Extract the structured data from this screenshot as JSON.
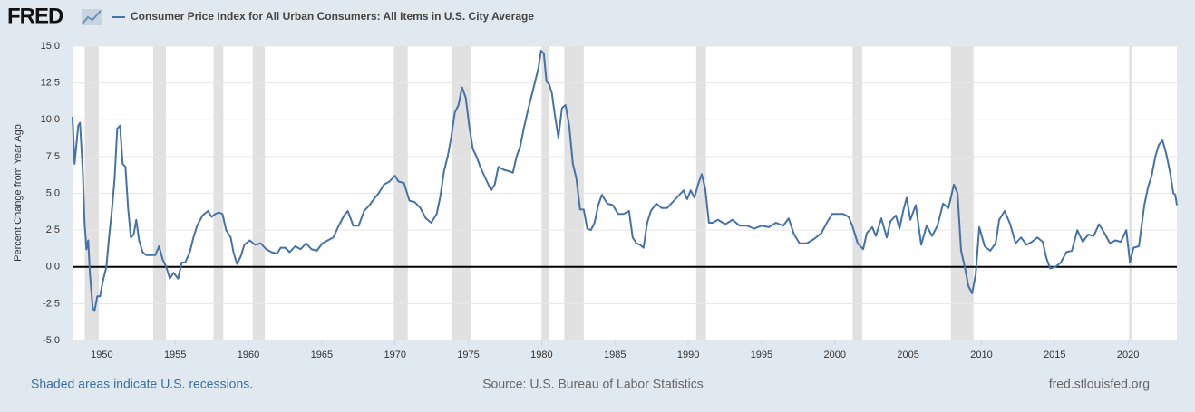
{
  "chart_data": {
    "type": "line",
    "logo": "FRED",
    "ylabel": "Percent Change from Year Ago",
    "footer_left": "Shaded areas indicate U.S. recessions.",
    "source": "Source: U.S. Bureau of Labor Statistics",
    "footer_right": "fred.stlouisfed.org",
    "xlim": [
      1948,
      2023.33
    ],
    "ylim": [
      -5,
      15
    ],
    "xticks": [
      1950,
      1955,
      1960,
      1965,
      1970,
      1975,
      1980,
      1985,
      1990,
      1995,
      2000,
      2005,
      2010,
      2015,
      2020
    ],
    "yticks": [
      {
        "value": -5,
        "label": "-5.0"
      },
      -2.5,
      {
        "value": 0,
        "label": "0.0"
      },
      2.5,
      {
        "value": 5,
        "label": "5.0"
      },
      7.5,
      {
        "value": 10,
        "label": "10.0"
      },
      12.5,
      {
        "value": 15,
        "label": "15.0"
      }
    ],
    "grid": true,
    "recession_color": "#e1e1e1",
    "recessions": [
      [
        1948.83,
        1949.79
      ],
      [
        1953.5,
        1954.37
      ],
      [
        1957.62,
        1958.29
      ],
      [
        1960.29,
        1961.12
      ],
      [
        1969.92,
        1970.87
      ],
      [
        1973.87,
        1975.21
      ],
      [
        1980.0,
        1980.54
      ],
      [
        1981.54,
        1982.87
      ],
      [
        1990.54,
        1991.21
      ],
      [
        2001.21,
        2001.87
      ],
      [
        2007.92,
        2009.46
      ],
      [
        2020.08,
        2020.29
      ]
    ],
    "x": [
      1948.0,
      1948.14,
      1948.39,
      1948.51,
      1948.7,
      1948.82,
      1948.95,
      1949.07,
      1949.19,
      1949.38,
      1949.5,
      1949.69,
      1949.88,
      1950.06,
      1950.31,
      1950.49,
      1950.68,
      1950.87,
      1951.05,
      1951.24,
      1951.42,
      1951.61,
      1951.79,
      1951.98,
      1952.17,
      1952.35,
      1952.54,
      1952.78,
      1953.03,
      1953.4,
      1953.65,
      1953.9,
      1954.15,
      1954.39,
      1954.64,
      1954.89,
      1955.2,
      1955.45,
      1955.69,
      1956.0,
      1956.25,
      1956.5,
      1956.87,
      1957.24,
      1957.49,
      1957.74,
      1957.98,
      1958.23,
      1958.48,
      1958.79,
      1958.98,
      1959.22,
      1959.47,
      1959.72,
      1960.09,
      1960.46,
      1960.84,
      1961.21,
      1961.58,
      1961.95,
      1962.2,
      1962.51,
      1962.81,
      1963.19,
      1963.56,
      1963.93,
      1964.3,
      1964.67,
      1965.04,
      1965.41,
      1965.79,
      1966.16,
      1966.53,
      1966.78,
      1967.15,
      1967.52,
      1967.89,
      1968.26,
      1968.63,
      1968.88,
      1969.25,
      1969.62,
      1969.99,
      1970.24,
      1970.61,
      1970.98,
      1971.35,
      1971.73,
      1972.1,
      1972.47,
      1972.84,
      1973.09,
      1973.34,
      1973.59,
      1973.83,
      1974.08,
      1974.33,
      1974.57,
      1974.82,
      1975.07,
      1975.31,
      1975.56,
      1975.81,
      1976.18,
      1976.55,
      1976.8,
      1977.05,
      1977.42,
      1977.79,
      1978.04,
      1978.29,
      1978.54,
      1978.78,
      1979.03,
      1979.28,
      1979.53,
      1979.78,
      1979.96,
      1980.15,
      1980.33,
      1980.52,
      1980.7,
      1980.89,
      1981.14,
      1981.39,
      1981.63,
      1981.88,
      1982.13,
      1982.37,
      1982.62,
      1982.87,
      1983.11,
      1983.36,
      1983.61,
      1983.86,
      1984.11,
      1984.48,
      1984.85,
      1985.22,
      1985.59,
      1985.96,
      1986.21,
      1986.46,
      1986.71,
      1986.95,
      1987.2,
      1987.45,
      1987.82,
      1988.19,
      1988.56,
      1988.93,
      1989.31,
      1989.68,
      1989.92,
      1990.17,
      1990.42,
      1990.67,
      1990.92,
      1991.16,
      1991.41,
      1991.66,
      1992.03,
      1992.53,
      1993.02,
      1993.51,
      1994.01,
      1994.5,
      1995.0,
      1995.49,
      1995.98,
      1996.48,
      1996.85,
      1997.22,
      1997.59,
      1998.09,
      1998.59,
      1999.08,
      1999.45,
      1999.82,
      2000.2,
      2000.57,
      2000.94,
      2001.19,
      2001.56,
      2001.93,
      2002.18,
      2002.55,
      2002.8,
      2003.17,
      2003.54,
      2003.79,
      2004.16,
      2004.41,
      2004.66,
      2004.9,
      2005.15,
      2005.52,
      2005.89,
      2006.26,
      2006.63,
      2007.0,
      2007.38,
      2007.75,
      2008.12,
      2008.37,
      2008.61,
      2008.86,
      2009.11,
      2009.36,
      2009.61,
      2009.85,
      2010.22,
      2010.6,
      2010.97,
      2011.21,
      2011.58,
      2011.96,
      2012.33,
      2012.7,
      2013.07,
      2013.44,
      2013.81,
      2014.18,
      2014.43,
      2014.68,
      2015.05,
      2015.42,
      2015.79,
      2016.17,
      2016.54,
      2016.91,
      2017.28,
      2017.65,
      2018.02,
      2018.39,
      2018.76,
      2019.13,
      2019.51,
      2019.88,
      2020.13,
      2020.37,
      2020.74,
      2021.11,
      2021.36,
      2021.61,
      2021.86,
      2022.1,
      2022.35,
      2022.6,
      2022.85,
      2023.09,
      2023.22,
      2023.33
    ],
    "series": [
      {
        "name": "Consumer Price Index for All Urban Consumers: All Items in U.S. City Average",
        "color": "#4572a7",
        "values": [
          10.2,
          7.0,
          9.6,
          9.8,
          6.5,
          3.0,
          1.2,
          1.8,
          -0.5,
          -2.8,
          -3.0,
          -2.0,
          -2.0,
          -1.0,
          0.0,
          2.0,
          3.8,
          6.0,
          9.4,
          9.6,
          7.0,
          6.8,
          4.0,
          2.0,
          2.2,
          3.2,
          1.8,
          1.0,
          0.8,
          0.8,
          0.8,
          1.4,
          0.5,
          0.0,
          -0.8,
          -0.4,
          -0.8,
          0.3,
          0.3,
          1.0,
          2.0,
          2.8,
          3.5,
          3.8,
          3.4,
          3.6,
          3.7,
          3.6,
          2.5,
          2.0,
          1.0,
          0.2,
          0.7,
          1.5,
          1.8,
          1.5,
          1.6,
          1.2,
          1.0,
          0.9,
          1.3,
          1.3,
          1.0,
          1.4,
          1.2,
          1.6,
          1.2,
          1.1,
          1.6,
          1.8,
          2.0,
          2.8,
          3.5,
          3.8,
          2.8,
          2.8,
          3.8,
          4.2,
          4.7,
          5.0,
          5.6,
          5.8,
          6.2,
          5.8,
          5.7,
          4.5,
          4.4,
          4.0,
          3.3,
          3.0,
          3.6,
          4.8,
          6.5,
          7.5,
          8.8,
          10.5,
          11.0,
          12.2,
          11.5,
          9.5,
          8.0,
          7.5,
          6.8,
          6.0,
          5.2,
          5.6,
          6.8,
          6.6,
          6.5,
          6.4,
          7.5,
          8.2,
          9.4,
          10.5,
          11.5,
          12.5,
          13.5,
          14.7,
          14.5,
          12.6,
          12.4,
          11.8,
          10.4,
          8.8,
          10.8,
          11.0,
          9.6,
          7.0,
          6.0,
          3.9,
          3.9,
          2.6,
          2.5,
          3.0,
          4.2,
          4.9,
          4.3,
          4.2,
          3.6,
          3.6,
          3.8,
          2.0,
          1.6,
          1.5,
          1.3,
          3.0,
          3.8,
          4.3,
          4.0,
          4.0,
          4.4,
          4.8,
          5.2,
          4.6,
          5.2,
          4.7,
          5.6,
          6.3,
          5.3,
          3.0,
          3.0,
          3.2,
          2.9,
          3.2,
          2.8,
          2.8,
          2.6,
          2.8,
          2.7,
          3.0,
          2.8,
          3.3,
          2.2,
          1.6,
          1.6,
          1.9,
          2.3,
          3.0,
          3.6,
          3.6,
          3.6,
          3.4,
          2.8,
          1.6,
          1.2,
          2.3,
          2.7,
          2.1,
          3.3,
          2.0,
          3.1,
          3.5,
          2.6,
          3.8,
          4.7,
          3.2,
          4.2,
          1.5,
          2.8,
          2.1,
          2.8,
          4.3,
          4.0,
          5.6,
          5.0,
          1.1,
          0.0,
          -1.3,
          -1.8,
          -0.5,
          2.7,
          1.4,
          1.1,
          1.6,
          3.2,
          3.8,
          2.9,
          1.6,
          2.0,
          1.5,
          1.7,
          2.0,
          1.7,
          0.6,
          -0.1,
          0.0,
          0.3,
          1.0,
          1.1,
          2.5,
          1.7,
          2.2,
          2.1,
          2.9,
          2.3,
          1.6,
          1.8,
          1.7,
          2.5,
          0.3,
          1.3,
          1.4,
          4.2,
          5.4,
          6.2,
          7.5,
          8.3,
          8.6,
          7.7,
          6.5,
          5.0,
          4.9,
          4.2
        ]
      }
    ]
  }
}
